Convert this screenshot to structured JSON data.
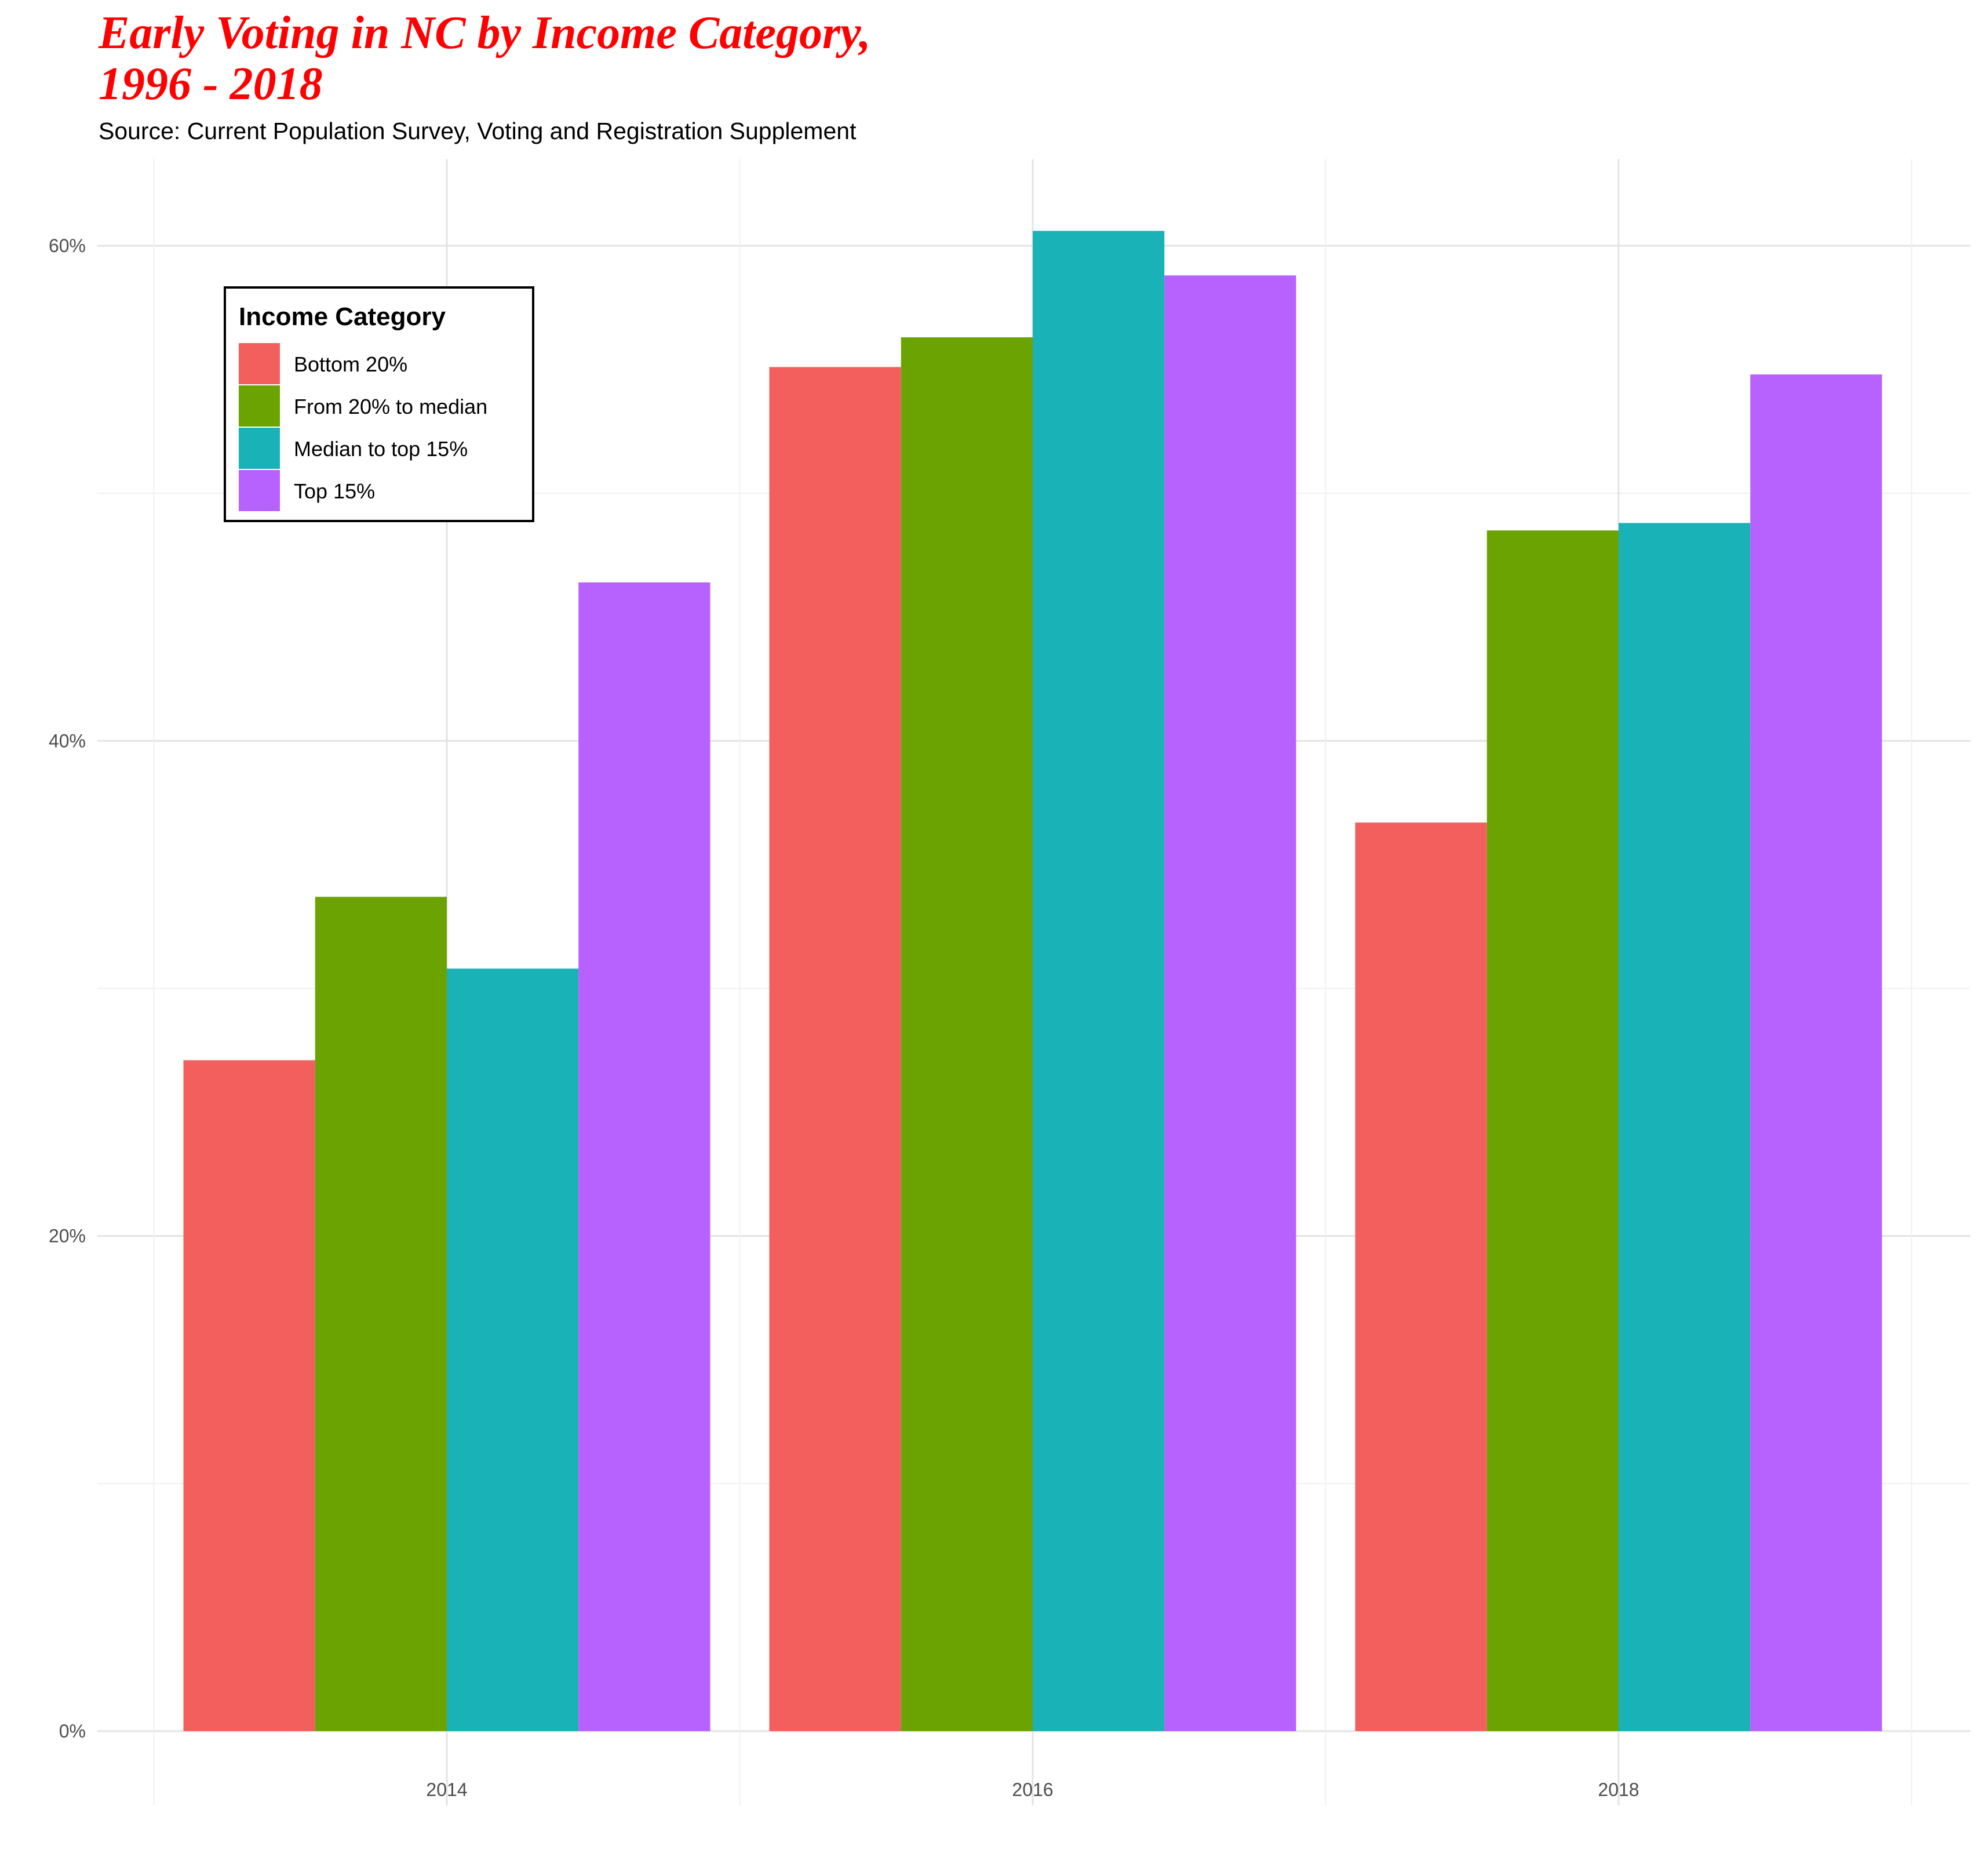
{
  "chart_data": {
    "type": "bar",
    "title_lines": [
      "Early Voting in NC by Income Category,",
      "1996 - 2018"
    ],
    "subtitle": "Source: Current Population Survey, Voting and Registration Supplement",
    "xlabel": "",
    "ylabel": "",
    "categories": [
      "2014",
      "2016",
      "2018"
    ],
    "ylim": [
      -3,
      63.5
    ],
    "y_ticks": [
      0,
      20,
      40,
      60
    ],
    "y_tick_labels": [
      "0%",
      "20%",
      "40%",
      "60%"
    ],
    "grid": true,
    "legend": {
      "title": "Income Category",
      "placement": "top-left inside"
    },
    "series": [
      {
        "name": "Bottom 20%",
        "color": "#F25F5C",
        "values": [
          27.1,
          55.1,
          36.7
        ]
      },
      {
        "name": "From 20% to median",
        "color": "#6BA302",
        "values": [
          33.7,
          56.3,
          48.5
        ]
      },
      {
        "name": "Median to top 15%",
        "color": "#19B2B6",
        "values": [
          30.8,
          60.6,
          48.8
        ]
      },
      {
        "name": "Top 15%",
        "color": "#B761FF",
        "values": [
          46.4,
          58.8,
          54.8
        ]
      }
    ]
  }
}
